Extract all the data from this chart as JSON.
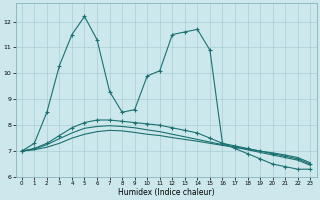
{
  "xlabel": "Humidex (Indice chaleur)",
  "bg_color": "#cce8ec",
  "grid_color": "#aacdd4",
  "line_color": "#1a7070",
  "xlim": [
    -0.5,
    23.5
  ],
  "ylim": [
    6.0,
    12.7
  ],
  "xticks": [
    0,
    1,
    2,
    3,
    4,
    5,
    6,
    7,
    8,
    9,
    10,
    11,
    12,
    13,
    14,
    15,
    16,
    17,
    18,
    19,
    20,
    21,
    22,
    23
  ],
  "yticks": [
    6,
    7,
    8,
    9,
    10,
    11,
    12
  ],
  "series": [
    {
      "x": [
        0,
        1,
        2,
        3,
        4,
        5,
        6,
        7,
        8,
        9,
        10,
        11,
        12,
        13,
        14,
        15,
        16,
        17,
        18,
        19,
        20,
        21,
        22,
        23
      ],
      "y": [
        7.0,
        7.3,
        8.5,
        10.3,
        11.5,
        12.2,
        11.3,
        9.3,
        8.5,
        8.6,
        9.9,
        10.1,
        11.5,
        11.6,
        11.7,
        10.9,
        7.3,
        7.1,
        6.9,
        6.7,
        6.5,
        6.4,
        6.3,
        6.3
      ],
      "marker": true
    },
    {
      "x": [
        0,
        1,
        2,
        3,
        4,
        5,
        6,
        7,
        8,
        9,
        10,
        11,
        12,
        13,
        14,
        15,
        16,
        17,
        18,
        19,
        20,
        21,
        22,
        23
      ],
      "y": [
        7.0,
        7.1,
        7.3,
        7.6,
        7.9,
        8.1,
        8.2,
        8.2,
        8.15,
        8.1,
        8.05,
        8.0,
        7.9,
        7.8,
        7.7,
        7.5,
        7.3,
        7.2,
        7.1,
        7.0,
        6.9,
        6.8,
        6.7,
        6.5
      ],
      "marker": true
    },
    {
      "x": [
        0,
        1,
        2,
        3,
        4,
        5,
        6,
        7,
        8,
        9,
        10,
        11,
        12,
        13,
        14,
        15,
        16,
        17,
        18,
        19,
        20,
        21,
        22,
        23
      ],
      "y": [
        7.0,
        7.05,
        7.15,
        7.3,
        7.5,
        7.65,
        7.75,
        7.8,
        7.78,
        7.72,
        7.65,
        7.6,
        7.52,
        7.45,
        7.38,
        7.3,
        7.22,
        7.15,
        7.08,
        7.0,
        6.93,
        6.85,
        6.75,
        6.55
      ],
      "marker": false
    },
    {
      "x": [
        0,
        1,
        2,
        3,
        4,
        5,
        6,
        7,
        8,
        9,
        10,
        11,
        12,
        13,
        14,
        15,
        16,
        17,
        18,
        19,
        20,
        21,
        22,
        23
      ],
      "y": [
        7.0,
        7.08,
        7.25,
        7.48,
        7.7,
        7.88,
        7.95,
        7.98,
        7.95,
        7.9,
        7.82,
        7.75,
        7.65,
        7.55,
        7.45,
        7.35,
        7.25,
        7.15,
        7.05,
        6.95,
        6.85,
        6.75,
        6.65,
        6.45
      ],
      "marker": false
    }
  ]
}
